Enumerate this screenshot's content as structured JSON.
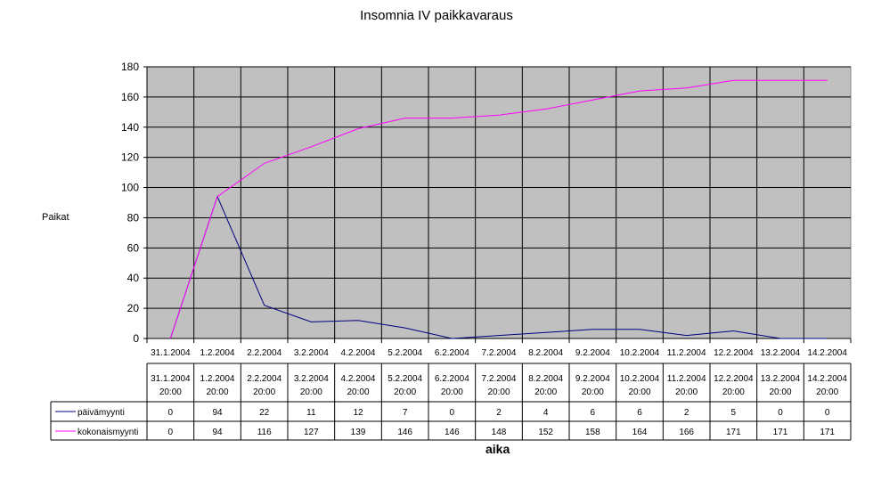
{
  "chart_data": {
    "type": "line",
    "title": "Insomnia IV paikkavaraus",
    "xlabel": "aika",
    "ylabel": "Paikat",
    "ylim": [
      0,
      180
    ],
    "y_ticks": [
      0,
      20,
      40,
      60,
      80,
      100,
      120,
      140,
      160,
      180
    ],
    "grid": true,
    "categories": [
      "31.1.2004",
      "1.2.2004",
      "2.2.2004",
      "3.2.2004",
      "4.2.2004",
      "5.2.2004",
      "6.2.2004",
      "7.2.2004",
      "8.2.2004",
      "9.2.2004",
      "10.2.2004",
      "11.2.2004",
      "12.2.2004",
      "13.2.2004",
      "14.2.2004"
    ],
    "table_time": "20:00",
    "series": [
      {
        "name": "päivämyynti",
        "color": "#000080",
        "values": [
          0,
          94,
          22,
          11,
          12,
          7,
          0,
          2,
          4,
          6,
          6,
          2,
          5,
          0,
          0
        ]
      },
      {
        "name": "kokonaismyynti",
        "color": "#ff00ff",
        "values": [
          0,
          94,
          116,
          127,
          139,
          146,
          146,
          148,
          152,
          158,
          164,
          166,
          171,
          171,
          171
        ]
      }
    ]
  }
}
